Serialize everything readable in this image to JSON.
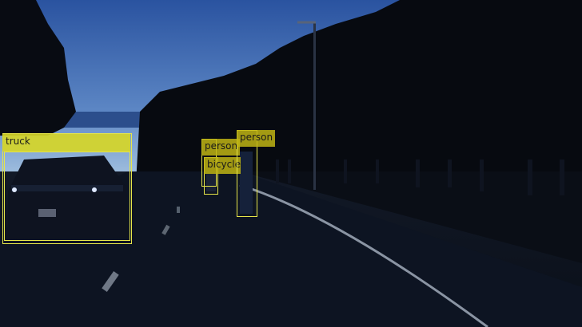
{
  "scene": {
    "description_icon": "night-road-scene"
  },
  "detections": [
    {
      "label": "truck"
    },
    {
      "label": "person"
    },
    {
      "label": "bicycle"
    },
    {
      "label": "person"
    }
  ],
  "colors": {
    "box_outline": "#e6e64a",
    "label_fill": "#d6d628",
    "sky_top": "#2f5aa8",
    "sky_horizon": "#9fc0e0"
  }
}
